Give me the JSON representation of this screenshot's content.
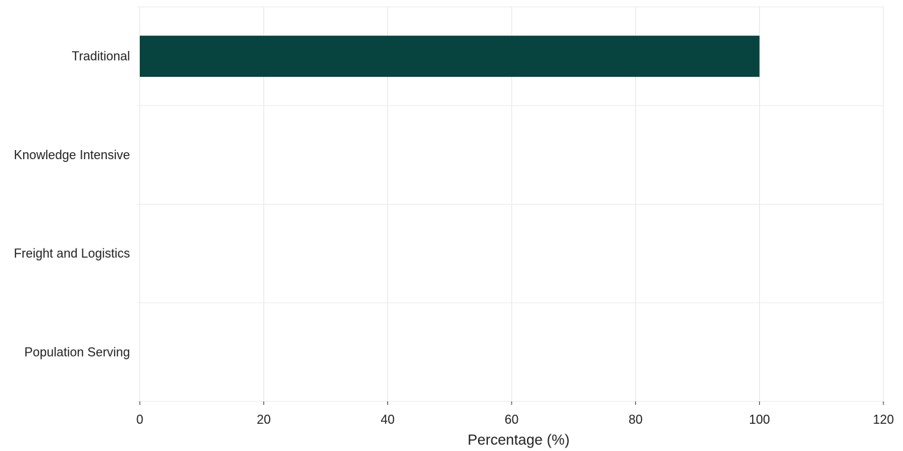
{
  "chart_data": {
    "type": "bar",
    "orientation": "horizontal",
    "categories": [
      "Traditional",
      "Knowledge Intensive",
      "Freight and Logistics",
      "Population Serving"
    ],
    "values": [
      100,
      0,
      0,
      0
    ],
    "xlabel": "Percentage (%)",
    "ylabel": "",
    "xlim": [
      0,
      120
    ],
    "xticks": [
      0,
      20,
      40,
      60,
      80,
      100,
      120
    ],
    "grid": true,
    "legend": "none",
    "bar_color": "#07433f"
  }
}
